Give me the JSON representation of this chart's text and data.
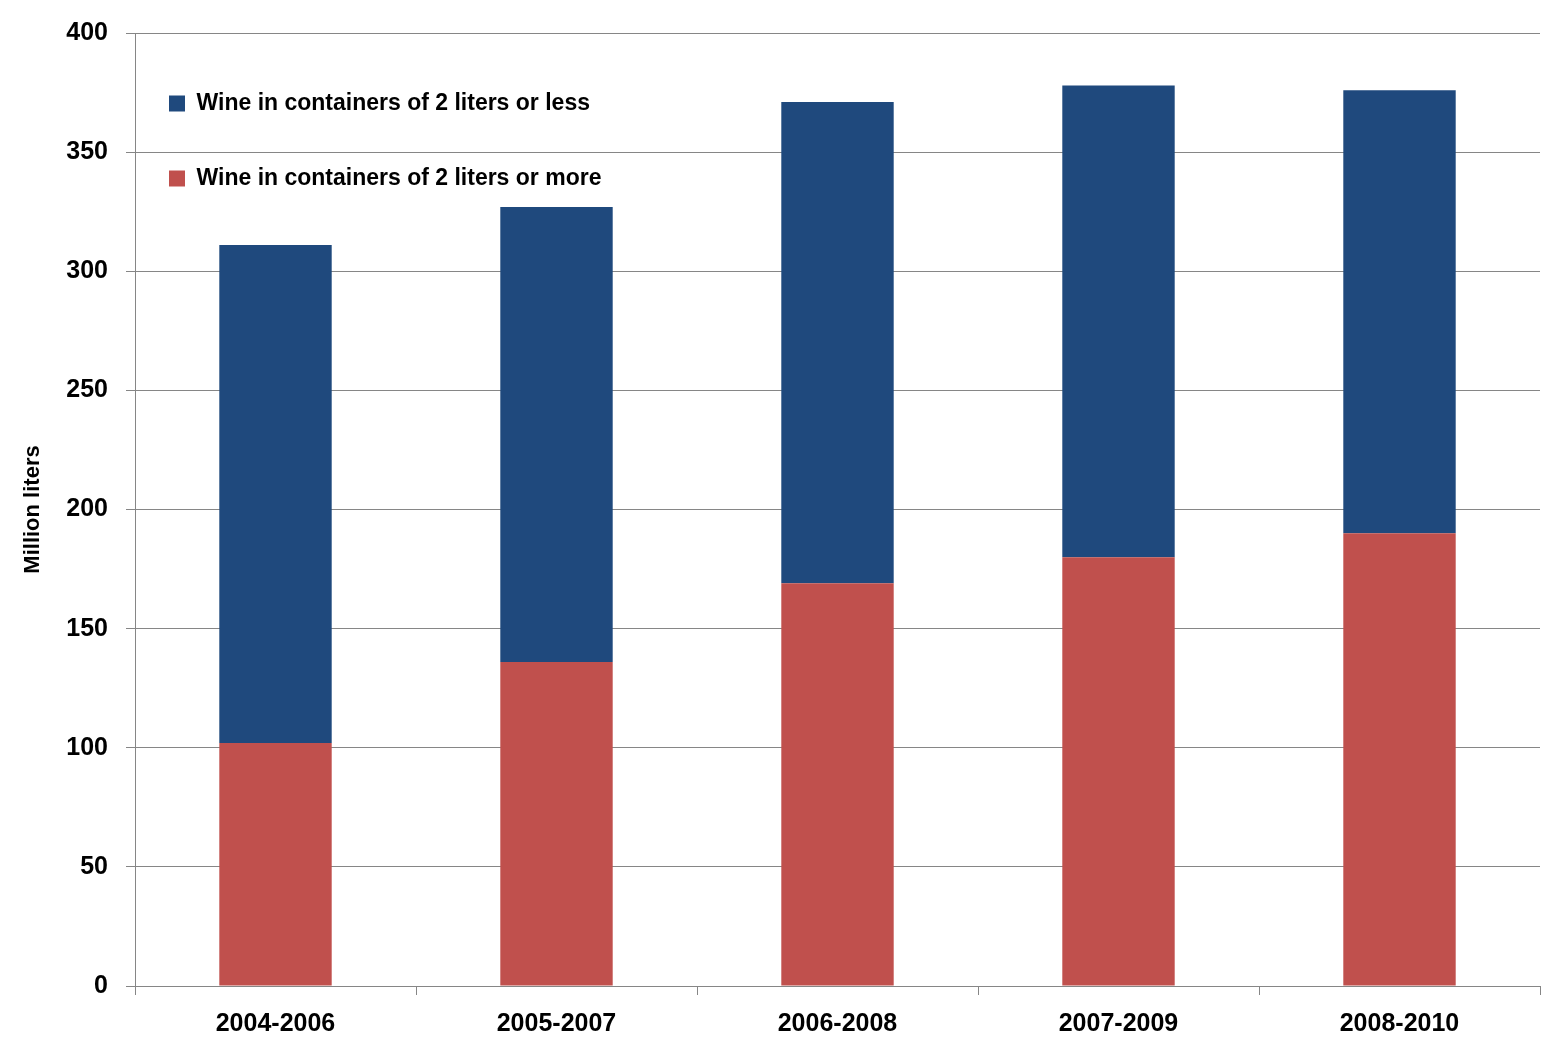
{
  "chart_data": {
    "type": "bar",
    "stacked": true,
    "categories": [
      "2004-2006",
      "2005-2007",
      "2006-2008",
      "2007-2009",
      "2008-2010"
    ],
    "series": [
      {
        "name": "Wine in containers of 2 liters or more",
        "color": "#c0504d",
        "values": [
          102,
          136,
          169,
          180,
          190
        ]
      },
      {
        "name": "Wine in containers of 2 liters or less",
        "color": "#1f497d",
        "values": [
          209,
          191,
          202,
          198,
          186
        ]
      }
    ],
    "ylabel": "Million liters",
    "ylim": [
      0,
      400
    ],
    "yticks": [
      0,
      50,
      100,
      150,
      200,
      250,
      300,
      350,
      400
    ],
    "grid": "y",
    "legend": "top left"
  }
}
